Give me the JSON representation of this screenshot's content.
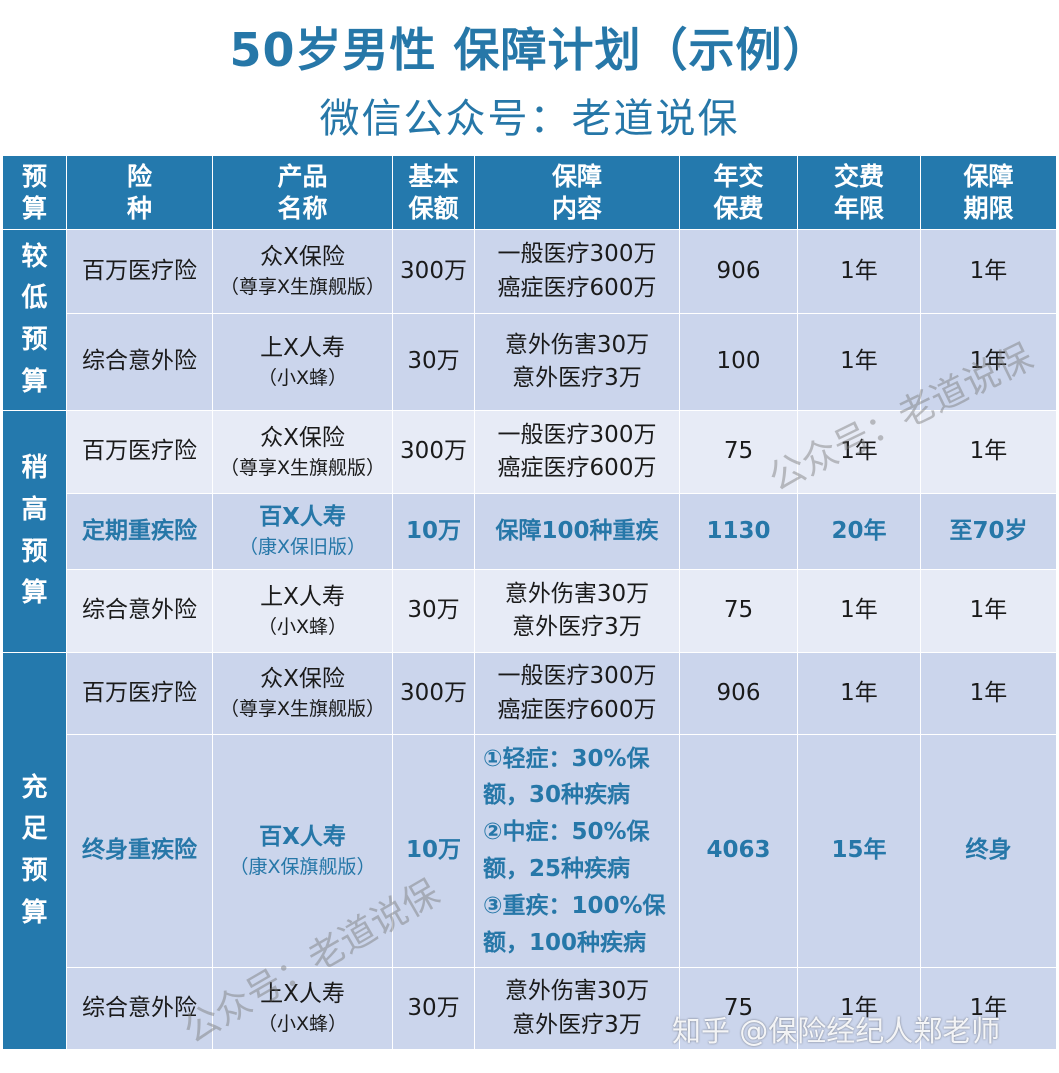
{
  "title": "50岁男性 保障计划（示例）",
  "subtitle": "微信公众号：老道说保",
  "headers": {
    "budget": "预算",
    "type": "险种",
    "product": "产品名称",
    "amount": "基本保额",
    "coverage": "保障内容",
    "premium": "年交保费",
    "pay_term": "交费年限",
    "term": "保障期限"
  },
  "categories": {
    "low": "较低预算",
    "mid": "稍高预算",
    "full": "充足预算"
  },
  "rows": [
    {
      "type": "百万医疗险",
      "product": "众X保险",
      "product_sub": "（尊享X生旗舰版）",
      "amount": "300万",
      "coverage_1": "一般医疗300万",
      "coverage_2": "癌症医疗600万",
      "premium": "906",
      "pay_term": "1年",
      "term": "1年"
    },
    {
      "type": "综合意外险",
      "product": "上X人寿",
      "product_sub": "（小X蜂）",
      "amount": "30万",
      "coverage_1": "意外伤害30万",
      "coverage_2": "意外医疗3万",
      "premium": "100",
      "pay_term": "1年",
      "term": "1年"
    },
    {
      "type": "百万医疗险",
      "product": "众X保险",
      "product_sub": "（尊享X生旗舰版）",
      "amount": "300万",
      "coverage_1": "一般医疗300万",
      "coverage_2": "癌症医疗600万",
      "premium": "75",
      "pay_term": "1年",
      "term": "1年"
    },
    {
      "type": "定期重疾险",
      "product": "百X人寿",
      "product_sub": "（康X保旧版）",
      "amount": "10万",
      "coverage_1": "保障100种重疾",
      "premium": "1130",
      "pay_term": "20年",
      "term": "至70岁"
    },
    {
      "type": "综合意外险",
      "product": "上X人寿",
      "product_sub": "（小X蜂）",
      "amount": "30万",
      "coverage_1": "意外伤害30万",
      "coverage_2": "意外医疗3万",
      "premium": "75",
      "pay_term": "1年",
      "term": "1年"
    },
    {
      "type": "百万医疗险",
      "product": "众X保险",
      "product_sub": "（尊享X生旗舰版）",
      "amount": "300万",
      "coverage_1": "一般医疗300万",
      "coverage_2": "癌症医疗600万",
      "premium": "906",
      "pay_term": "1年",
      "term": "1年"
    },
    {
      "type": "终身重疾险",
      "product": "百X人寿",
      "product_sub": "（康X保旗舰版）",
      "amount": "10万",
      "coverage_lines": [
        "①轻症：30%保",
        "额，30种疾病",
        "②中症：50%保",
        "额，25种疾病",
        "③重疾：100%保",
        "额，100种疾病"
      ],
      "premium": "4063",
      "pay_term": "15年",
      "term": "终身"
    },
    {
      "type": "综合意外险",
      "product": "上X人寿",
      "product_sub": "（小X蜂）",
      "amount": "30万",
      "coverage_1": "意外伤害30万",
      "coverage_2": "意外医疗3万",
      "premium": "75",
      "pay_term": "1年",
      "term": "1年"
    }
  ],
  "watermark_1": "公众号：老道说保",
  "watermark_2": "公众号：老道说保",
  "footer": "知乎 @保险经纪人郑老师",
  "colors": {
    "header_bg": "#2479ad",
    "row_dark": "#cbd5ec",
    "row_light": "#e7ebf6",
    "accent": "#2677a8"
  }
}
